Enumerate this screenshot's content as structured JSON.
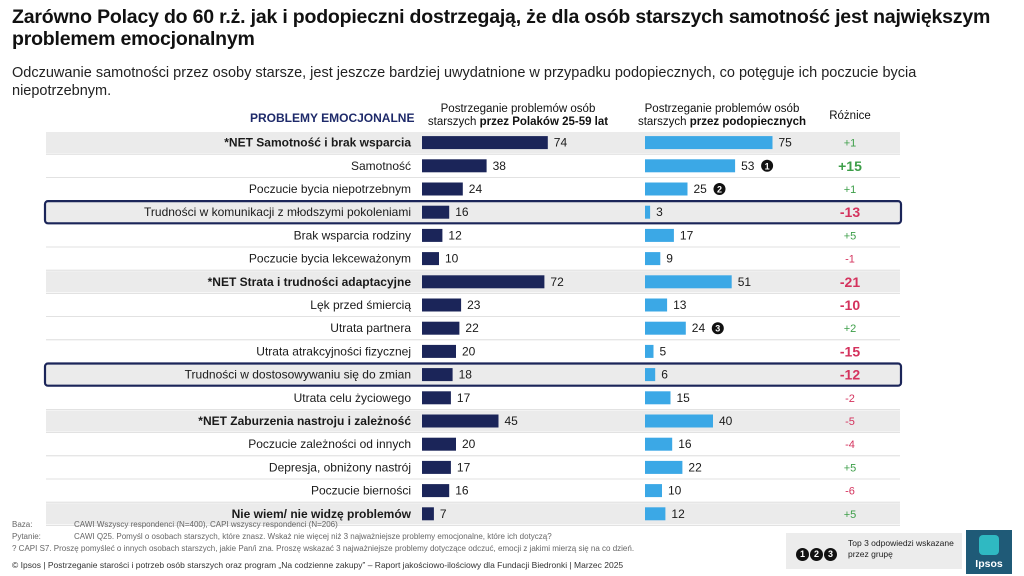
{
  "title": "Zarówno Polacy do 60 r.ż. jak i podopieczni dostrzegają, że dla osób starszych samotność jest największym problemem emocjonalnym",
  "subtitle": "Odczuwanie samotności przez osoby starsze, jest jeszcze bardziej uwydatnione w przypadku podopiecznych, co potęguje ich poczucie bycia niepotrzebnym.",
  "headers": {
    "category": "PROBLEMY EMOCJONALNE",
    "series_a_line1": "Postrzeganie problemów osób",
    "series_a_line2_pre": "starszych ",
    "series_a_line2_bold": "przez Polaków 25-59 lat",
    "series_b_line1": "Postrzeganie problemów osób",
    "series_b_line2_pre": "starszych ",
    "series_b_line2_bold": "przez podopiecznych",
    "diff": "Różnice"
  },
  "colors": {
    "series_a": "#1b2559",
    "series_b": "#3ba8e6",
    "row_shade": "#ebebeb",
    "highlight_border": "#1b2559",
    "diff_pos": "#3c9e48",
    "diff_neg": "#d4325d"
  },
  "chart_data": {
    "type": "bar",
    "orientation": "horizontal",
    "categories": [
      "*NET Samotność i brak wsparcia",
      "Samotność",
      "Poczucie bycia niepotrzebnym",
      "Trudności w komunikacji z młodszymi pokoleniami",
      "Brak wsparcia rodziny",
      "Poczucie bycia lekceważonym",
      "*NET Strata i trudności adaptacyjne",
      "Lęk przed śmiercią",
      "Utrata partnera",
      "Utrata atrakcyjności fizycznej",
      "Trudności w dostosowywaniu się do zmian",
      "Utrata celu życiowego",
      "*NET Zaburzenia nastroju i zależność",
      "Poczucie zależności od innych",
      "Depresja, obniżony nastrój",
      "Poczucie bierności",
      "Nie wiem/ nie widzę problemów"
    ],
    "series": [
      {
        "name": "Postrzeganie problemów osób starszych przez Polaków 25-59 lat",
        "values": [
          74,
          38,
          24,
          16,
          12,
          10,
          72,
          23,
          22,
          20,
          18,
          17,
          45,
          20,
          17,
          16,
          7
        ]
      },
      {
        "name": "Postrzeganie problemów osób starszych przez podopiecznych",
        "values": [
          75,
          53,
          25,
          3,
          17,
          9,
          51,
          13,
          24,
          5,
          6,
          15,
          40,
          16,
          22,
          10,
          12
        ]
      }
    ],
    "differences": [
      "+1",
      "+15",
      "+1",
      "-13",
      "+5",
      "-1",
      "-21",
      "-10",
      "+2",
      "-15",
      "-12",
      "-2",
      "-5",
      "-4",
      "+5",
      "-6",
      "+5"
    ],
    "diff_emphasis": [
      false,
      true,
      false,
      true,
      false,
      false,
      true,
      true,
      false,
      true,
      true,
      false,
      false,
      false,
      false,
      false,
      false
    ],
    "bold_rows": [
      true,
      false,
      false,
      false,
      false,
      false,
      true,
      false,
      false,
      false,
      false,
      false,
      true,
      false,
      false,
      false,
      true
    ],
    "shaded_rows": [
      true,
      false,
      false,
      true,
      false,
      false,
      true,
      false,
      false,
      false,
      true,
      false,
      true,
      false,
      false,
      false,
      true
    ],
    "highlighted_rows": [
      3,
      10
    ],
    "top3_markers": [
      {
        "row": 1,
        "label": "1"
      },
      {
        "row": 2,
        "label": "2"
      },
      {
        "row": 8,
        "label": "3"
      }
    ]
  },
  "footnotes": {
    "baza_label": "Baza:",
    "baza_text": "CAWI Wszyscy respondenci (N=400), CAPI wszyscy respondenci (N=206)",
    "pytanie_label": "Pytanie:",
    "pytanie_text": "CAWI Q25. Pomyśl o osobach starszych, które znasz. Wskaż nie więcej niż 3 najważniejsze problemy emocjonalne, które ich dotyczą?",
    "capi_text": "? CAPI S7. Proszę pomyśleć o innych osobach starszych, jakie Pan/i zna. Proszę wskazać 3 najważniejsze problemy dotyczące odczuć, emocji z jakimi mierzą się na co dzień.",
    "source": "© Ipsos | Postrzeganie starości i potrzeb osób starszych oraz program „Na codzienne zakupy” – Raport jakościowo-ilościowy dla Fundacji Biedronki | Marzec 2025"
  },
  "legend": {
    "dots": [
      "1",
      "2",
      "3"
    ],
    "text": "Top 3 odpowiedzi wskazane przez grupę"
  },
  "logo": {
    "text": "Ipsos"
  }
}
